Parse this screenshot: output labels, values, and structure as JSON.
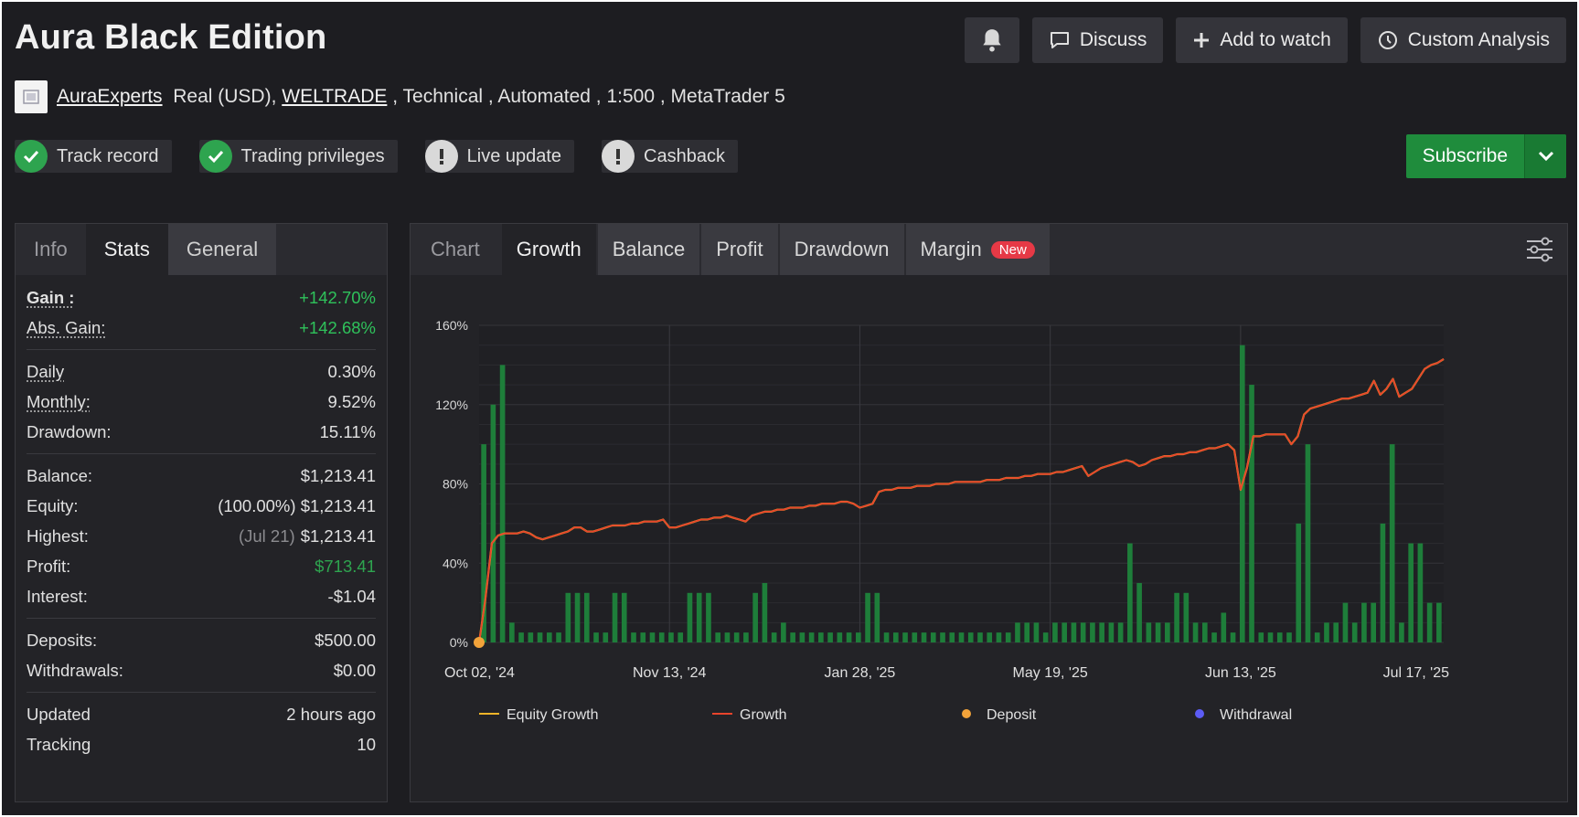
{
  "header": {
    "title": "Aura Black Edition",
    "discuss_label": "Discuss",
    "watch_label": "Add to watch",
    "custom_label": "Custom Analysis"
  },
  "subline": {
    "author": "AuraExperts",
    "account": "Real (USD), ",
    "broker": "WELTRADE",
    "rest": " , Technical , Automated , 1:500 , MetaTrader 5"
  },
  "badges": [
    {
      "label": "Track record",
      "status": "ok"
    },
    {
      "label": "Trading privileges",
      "status": "ok"
    },
    {
      "label": "Live update",
      "status": "warn"
    },
    {
      "label": "Cashback",
      "status": "warn"
    }
  ],
  "subscribe": {
    "label": "Subscribe"
  },
  "left_tabs": [
    "Info",
    "Stats",
    "General"
  ],
  "stats": {
    "gain": {
      "label": "Gain :",
      "value": "+142.70%"
    },
    "abs_gain": {
      "label": "Abs. Gain:",
      "value": "+142.68%"
    },
    "daily": {
      "label": "Daily",
      "value": "0.30%"
    },
    "monthly": {
      "label": "Monthly:",
      "value": "9.52%"
    },
    "drawdown": {
      "label": "Drawdown:",
      "value": "15.11%"
    },
    "balance": {
      "label": "Balance:",
      "value": "$1,213.41"
    },
    "equity": {
      "label": "Equity:",
      "pct": "(100.00%)",
      "value": "$1,213.41"
    },
    "highest": {
      "label": "Highest:",
      "date": "(Jul 21)",
      "value": "$1,213.41"
    },
    "profit": {
      "label": "Profit:",
      "value": "$713.41"
    },
    "interest": {
      "label": "Interest:",
      "value": "-$1.04"
    },
    "deposits": {
      "label": "Deposits:",
      "value": "$500.00"
    },
    "withdrawals": {
      "label": "Withdrawals:",
      "value": "$0.00"
    },
    "updated": {
      "label": "Updated",
      "value": "2 hours ago"
    },
    "tracking": {
      "label": "Tracking",
      "value": "10"
    }
  },
  "right_tabs": {
    "chart": "Chart",
    "growth": "Growth",
    "balance": "Balance",
    "profit": "Profit",
    "drawdown": "Drawdown",
    "margin": "Margin",
    "new_tag": "New"
  },
  "colors": {
    "growth_line": "#e8442c",
    "equity_line": "#f0b429",
    "bar": "#1e7e3a",
    "deposit": "#f2a33a",
    "withdrawal": "#5c5cf5"
  },
  "chart_data": {
    "type": "line",
    "title": "",
    "ylim": [
      0,
      160
    ],
    "yticks": [
      "0%",
      "40%",
      "80%",
      "120%",
      "160%"
    ],
    "ytick_values": [
      0,
      40,
      80,
      120,
      160
    ],
    "xtick_labels": [
      "Oct 02, '24",
      "Nov 13, '24",
      "Jan 28, '25",
      "May 19, '25",
      "Jun 13, '25",
      "Jul 17, '25"
    ],
    "xtick_index": [
      0,
      30,
      60,
      90,
      120,
      151
    ],
    "legend": [
      "Equity Growth",
      "Growth",
      "Deposit",
      "Withdrawal"
    ],
    "growth": [
      0,
      22,
      50,
      54,
      55,
      55,
      55,
      56,
      55,
      53,
      52,
      53,
      54,
      55,
      56,
      58,
      58,
      56,
      56,
      57,
      58,
      59,
      59,
      59,
      60,
      60,
      61,
      61,
      61,
      62,
      58,
      58,
      59,
      60,
      61,
      62,
      62,
      63,
      63,
      64,
      63,
      62,
      61,
      64,
      65,
      66,
      66,
      67,
      67,
      68,
      68,
      68,
      69,
      69,
      70,
      70,
      70,
      71,
      71,
      70,
      68,
      69,
      70,
      76,
      77,
      77,
      78,
      78,
      78,
      79,
      79,
      79,
      80,
      80,
      80,
      81,
      81,
      81,
      81,
      81,
      82,
      82,
      82,
      83,
      83,
      83,
      84,
      84,
      85,
      85,
      85,
      86,
      86,
      87,
      88,
      89,
      84,
      86,
      88,
      89,
      90,
      91,
      92,
      91,
      89,
      90,
      92,
      93,
      94,
      94,
      95,
      95,
      96,
      96,
      97,
      98,
      98,
      99,
      100,
      97,
      77,
      88,
      104,
      104,
      105,
      105,
      105,
      105,
      100,
      104,
      115,
      118,
      119,
      120,
      121,
      122,
      123,
      123,
      124,
      125,
      126,
      132,
      125,
      128,
      133,
      124,
      126,
      128,
      133,
      138,
      140,
      141,
      143
    ],
    "bars": [
      100,
      120,
      140,
      10,
      5,
      5,
      5,
      5,
      5,
      25,
      25,
      25,
      5,
      5,
      25,
      25,
      5,
      5,
      5,
      5,
      5,
      5,
      25,
      25,
      25,
      5,
      5,
      5,
      5,
      25,
      30,
      5,
      10,
      5,
      5,
      5,
      5,
      5,
      5,
      5,
      5,
      25,
      25,
      5,
      5,
      5,
      5,
      5,
      5,
      5,
      5,
      5,
      5,
      5,
      5,
      5,
      5,
      10,
      10,
      10,
      5,
      10,
      10,
      10,
      10,
      10,
      10,
      10,
      10,
      50,
      30,
      10,
      10,
      10,
      25,
      25,
      10,
      10,
      5,
      15,
      5,
      150,
      130,
      5,
      5,
      5,
      5,
      60,
      100,
      5,
      10,
      10,
      20,
      10,
      20,
      20,
      60,
      100,
      10,
      50,
      50,
      20,
      20
    ],
    "deposits": [
      {
        "index": 0,
        "value": 0
      }
    ]
  }
}
